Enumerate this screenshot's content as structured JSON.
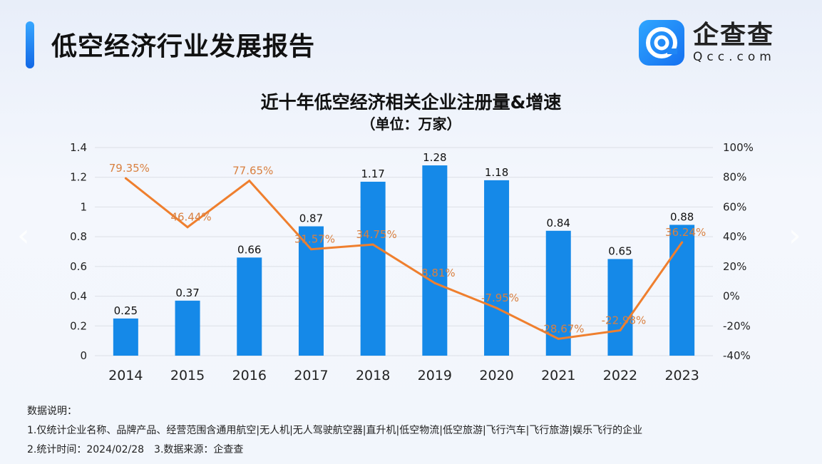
{
  "header": {
    "title": "低空经济行业发展报告",
    "logo_cn": "企查查",
    "logo_en": "Qcc.com"
  },
  "chart_data": {
    "type": "bar+line",
    "title": "近十年低空经济相关企业注册量&增速",
    "subtitle": "（单位：万家）",
    "categories": [
      "2014",
      "2015",
      "2016",
      "2017",
      "2018",
      "2019",
      "2020",
      "2021",
      "2022",
      "2023"
    ],
    "series": [
      {
        "type": "bar",
        "axis": "left",
        "values": [
          0.25,
          0.37,
          0.66,
          0.87,
          1.17,
          1.28,
          1.18,
          0.84,
          0.65,
          0.88
        ],
        "color": "#1589e8",
        "labels": [
          "0.25",
          "0.37",
          "0.66",
          "0.87",
          "1.17",
          "1.28",
          "1.18",
          "0.84",
          "0.65",
          "0.88"
        ]
      },
      {
        "type": "line",
        "axis": "right",
        "values": [
          79.35,
          46.44,
          77.65,
          31.57,
          34.75,
          8.81,
          -7.95,
          -28.67,
          -22.98,
          36.24
        ],
        "color": "#ef7f2e",
        "labels": [
          "79.35%",
          "46.44%",
          "77.65%",
          "31.57%",
          "34.75%",
          "8.81%",
          "-7.95%",
          "-28.67%",
          "-22.98%",
          "36.24%"
        ]
      }
    ],
    "left_axis": {
      "ylim": [
        0,
        1.4
      ],
      "ticks": [
        "0",
        "0.2",
        "0.4",
        "0.6",
        "0.8",
        "1",
        "1.2",
        "1.4"
      ]
    },
    "right_axis": {
      "ylim": [
        -40,
        100
      ],
      "ticks": [
        "-40%",
        "-20%",
        "0%",
        "20%",
        "40%",
        "60%",
        "80%",
        "100%"
      ]
    },
    "grid": true
  },
  "notes": {
    "heading": "数据说明：",
    "line1": "1.仅统计企业名称、品牌产品、经营范围含通用航空|无人机|无人驾驶航空器|直升机|低空物流|低空旅游|飞行汽车|飞行旅游|娱乐飞行的企业",
    "line2": "2.统计时间：2024/02/28　3.数据来源：企查查"
  },
  "nav": {
    "prev": "‹",
    "next": "›"
  }
}
